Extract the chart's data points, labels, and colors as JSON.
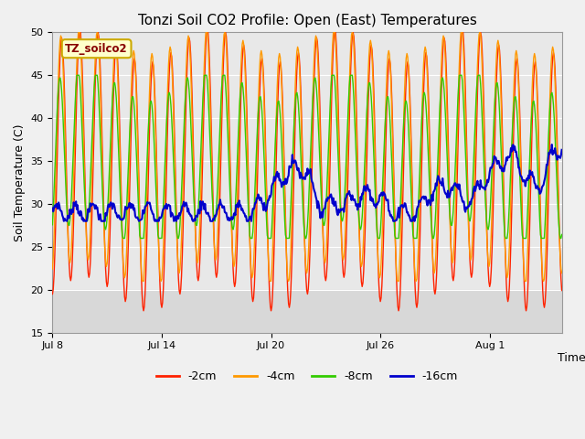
{
  "title": "Tonzi Soil CO2 Profile: Open (East) Temperatures",
  "ylabel": "Soil Temperature (C)",
  "xlabel": "Time",
  "ylim": [
    15,
    50
  ],
  "yticks": [
    15,
    20,
    25,
    30,
    35,
    40,
    45,
    50
  ],
  "n_points": 672,
  "colors": {
    "-2cm": "#ff2200",
    "-4cm": "#ff9900",
    "-8cm": "#33cc00",
    "-16cm": "#0000cc"
  },
  "legend_label": "TZ_soilco2",
  "xtick_labels": [
    "Jul 8",
    "Jul 14",
    "Jul 20",
    "Jul 26",
    "Aug 1"
  ],
  "background_color": "#f0f0f0",
  "plot_bg_color": "#e8e8e8",
  "gray_band_upper": 20,
  "gray_band_lower": 15,
  "gray_band_color": "#d8d8d8",
  "line_width": 1.0
}
